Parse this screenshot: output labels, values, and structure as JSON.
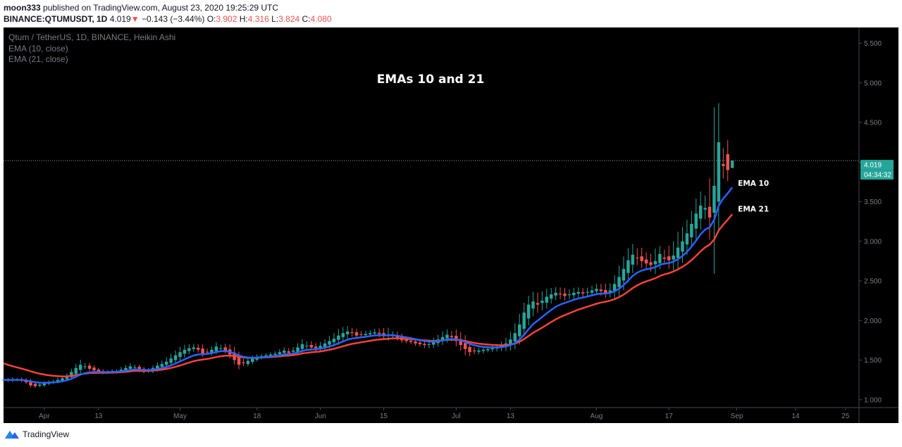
{
  "header": {
    "user": "moon333",
    "published_text": "published on TradingView.com, August 23, 2020 19:25:29 UTC",
    "symbol": "BINANCE:QTUMUSDT, 1D",
    "last": "4.019",
    "change_arrow": "▼",
    "change": "−0.143 (−3.44%)",
    "o_label": "O:",
    "o": "3.902",
    "h_label": "H:",
    "h": "4.316",
    "l_label": "L:",
    "l": "3.824",
    "c_label": "C:",
    "c": "4.080"
  },
  "legend": {
    "symbol_line": "Qtum / TetherUS, 1D, BINANCE, Heikin Ashi",
    "ema10_line": "EMA (10, close)",
    "ema21_line": "EMA (21, close)"
  },
  "footer": {
    "brand": "TradingView",
    "logo_icon": "tradingview-logo-icon"
  },
  "colors": {
    "background": "#000000",
    "up": "#26a69a",
    "down": "#ef5350",
    "ema10": "#2962ff",
    "ema21": "#f44336",
    "price_label_bg": "#26a69a"
  },
  "chart_data": {
    "type": "candlestick",
    "style": "Heikin Ashi",
    "title": "EMAs 10 and 21",
    "ylim": [
      0.9,
      5.7
    ],
    "y_ticks": [
      "1.000",
      "1.500",
      "2.000",
      "2.500",
      "3.000",
      "3.500",
      "4.000",
      "4.500",
      "5.000",
      "5.500"
    ],
    "x_ticks": [
      {
        "label": "Apr",
        "date": "2020-04-01"
      },
      {
        "label": "13",
        "date": "2020-04-13"
      },
      {
        "label": "May",
        "date": "2020-05-01"
      },
      {
        "label": "18",
        "date": "2020-05-18"
      },
      {
        "label": "Jun",
        "date": "2020-06-01"
      },
      {
        "label": "15",
        "date": "2020-06-15"
      },
      {
        "label": "Jul",
        "date": "2020-07-01"
      },
      {
        "label": "13",
        "date": "2020-07-13"
      },
      {
        "label": "Aug",
        "date": "2020-08-01"
      },
      {
        "label": "17",
        "date": "2020-08-17"
      },
      {
        "label": "Sep",
        "date": "2020-09-01"
      },
      {
        "label": "14",
        "date": "2020-09-14"
      },
      {
        "label": "25",
        "date": "2020-09-25"
      }
    ],
    "x_range": [
      "2020-03-23",
      "2020-09-28"
    ],
    "last_price": 4.019,
    "last_price_label": "4.019",
    "countdown_label": "04:34:32",
    "ema_labels": {
      "ema10": "EMA 10",
      "ema21": "EMA 21"
    },
    "candles": {
      "start_date": "2020-03-23",
      "close": [
        1.25,
        1.24,
        1.26,
        1.25,
        1.24,
        1.22,
        1.18,
        1.17,
        1.19,
        1.21,
        1.22,
        1.23,
        1.25,
        1.27,
        1.3,
        1.35,
        1.4,
        1.44,
        1.42,
        1.39,
        1.37,
        1.35,
        1.34,
        1.35,
        1.36,
        1.36,
        1.38,
        1.4,
        1.42,
        1.41,
        1.37,
        1.35,
        1.37,
        1.4,
        1.43,
        1.45,
        1.48,
        1.52,
        1.56,
        1.6,
        1.63,
        1.65,
        1.66,
        1.63,
        1.58,
        1.6,
        1.63,
        1.67,
        1.65,
        1.62,
        1.57,
        1.5,
        1.44,
        1.46,
        1.49,
        1.52,
        1.54,
        1.55,
        1.56,
        1.57,
        1.58,
        1.6,
        1.62,
        1.59,
        1.62,
        1.66,
        1.7,
        1.68,
        1.66,
        1.65,
        1.68,
        1.71,
        1.74,
        1.77,
        1.81,
        1.84,
        1.86,
        1.84,
        1.81,
        1.82,
        1.83,
        1.84,
        1.85,
        1.83,
        1.8,
        1.82,
        1.81,
        1.78,
        1.75,
        1.74,
        1.73,
        1.71,
        1.7,
        1.69,
        1.7,
        1.73,
        1.76,
        1.79,
        1.82,
        1.79,
        1.74,
        1.69,
        1.64,
        1.6,
        1.61,
        1.62,
        1.63,
        1.64,
        1.65,
        1.66,
        1.68,
        1.71,
        1.76,
        1.84,
        1.95,
        2.1,
        2.2,
        2.24,
        2.2,
        2.25,
        2.3,
        2.33,
        2.35,
        2.33,
        2.31,
        2.33,
        2.35,
        2.36,
        2.34,
        2.36,
        2.38,
        2.4,
        2.37,
        2.35,
        2.38,
        2.46,
        2.55,
        2.65,
        2.76,
        2.83,
        2.79,
        2.75,
        2.72,
        2.7,
        2.75,
        2.84,
        2.78,
        2.76,
        2.82,
        2.92,
        3.0,
        3.1,
        3.22,
        3.35,
        3.45,
        3.42,
        3.3,
        3.7,
        4.25,
        3.95,
        3.9,
        4.019
      ],
      "range": [
        0.06,
        0.05,
        0.05,
        0.05,
        0.06,
        0.06,
        0.07,
        0.06,
        0.05,
        0.05,
        0.05,
        0.05,
        0.06,
        0.06,
        0.07,
        0.09,
        0.12,
        0.14,
        0.1,
        0.08,
        0.06,
        0.05,
        0.05,
        0.05,
        0.05,
        0.05,
        0.07,
        0.08,
        0.09,
        0.07,
        0.06,
        0.05,
        0.06,
        0.07,
        0.09,
        0.1,
        0.12,
        0.13,
        0.14,
        0.15,
        0.14,
        0.12,
        0.1,
        0.1,
        0.12,
        0.09,
        0.09,
        0.12,
        0.1,
        0.1,
        0.14,
        0.16,
        0.16,
        0.1,
        0.08,
        0.08,
        0.07,
        0.06,
        0.06,
        0.06,
        0.07,
        0.08,
        0.09,
        0.09,
        0.1,
        0.12,
        0.14,
        0.13,
        0.11,
        0.1,
        0.11,
        0.12,
        0.14,
        0.16,
        0.18,
        0.17,
        0.15,
        0.12,
        0.1,
        0.09,
        0.09,
        0.08,
        0.1,
        0.12,
        0.14,
        0.2,
        0.12,
        0.1,
        0.09,
        0.08,
        0.08,
        0.08,
        0.09,
        0.11,
        0.13,
        0.12,
        0.13,
        0.16,
        0.15,
        0.14,
        0.18,
        0.2,
        0.22,
        0.14,
        0.1,
        0.09,
        0.09,
        0.08,
        0.09,
        0.1,
        0.12,
        0.16,
        0.22,
        0.28,
        0.3,
        0.28,
        0.25,
        0.27,
        0.3,
        0.26,
        0.22,
        0.18,
        0.16,
        0.17,
        0.16,
        0.14,
        0.14,
        0.13,
        0.12,
        0.12,
        0.13,
        0.14,
        0.16,
        0.18,
        0.2,
        0.25,
        0.32,
        0.35,
        0.34,
        0.3,
        0.26,
        0.24,
        0.2,
        0.24,
        0.35,
        0.22,
        0.22,
        0.3,
        0.4,
        0.45,
        0.4,
        0.38,
        0.36,
        0.42,
        0.4,
        0.35,
        0.8,
        2.2,
        1.1,
        0.45,
        0.4
      ]
    },
    "series": [
      {
        "name": "EMA 10",
        "period": 10,
        "color": "#2962ff"
      },
      {
        "name": "EMA 21",
        "period": 21,
        "color": "#f44336"
      }
    ]
  }
}
